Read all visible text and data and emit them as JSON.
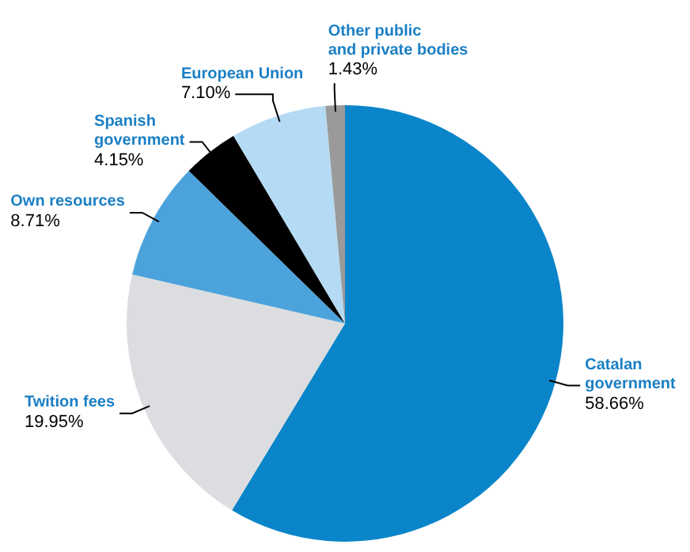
{
  "chart_data": {
    "type": "pie",
    "categories": [
      "Catalan\ngovernment",
      "Twition fees",
      "Own resources",
      "Spanish\ngovernment",
      "European Union",
      "Other public\nand private bodies"
    ],
    "values": [
      58.66,
      19.95,
      8.71,
      4.15,
      7.1,
      1.43
    ],
    "value_labels": [
      "58.66%",
      "19.95%",
      "8.71%",
      "4.15%",
      "7.10%",
      "1.43%"
    ],
    "colors": [
      "#0a85c9",
      "#dcdde0",
      "#4ca3dc",
      "#000000",
      "#b5daf3",
      "#9a9a9a"
    ],
    "legend": false
  }
}
